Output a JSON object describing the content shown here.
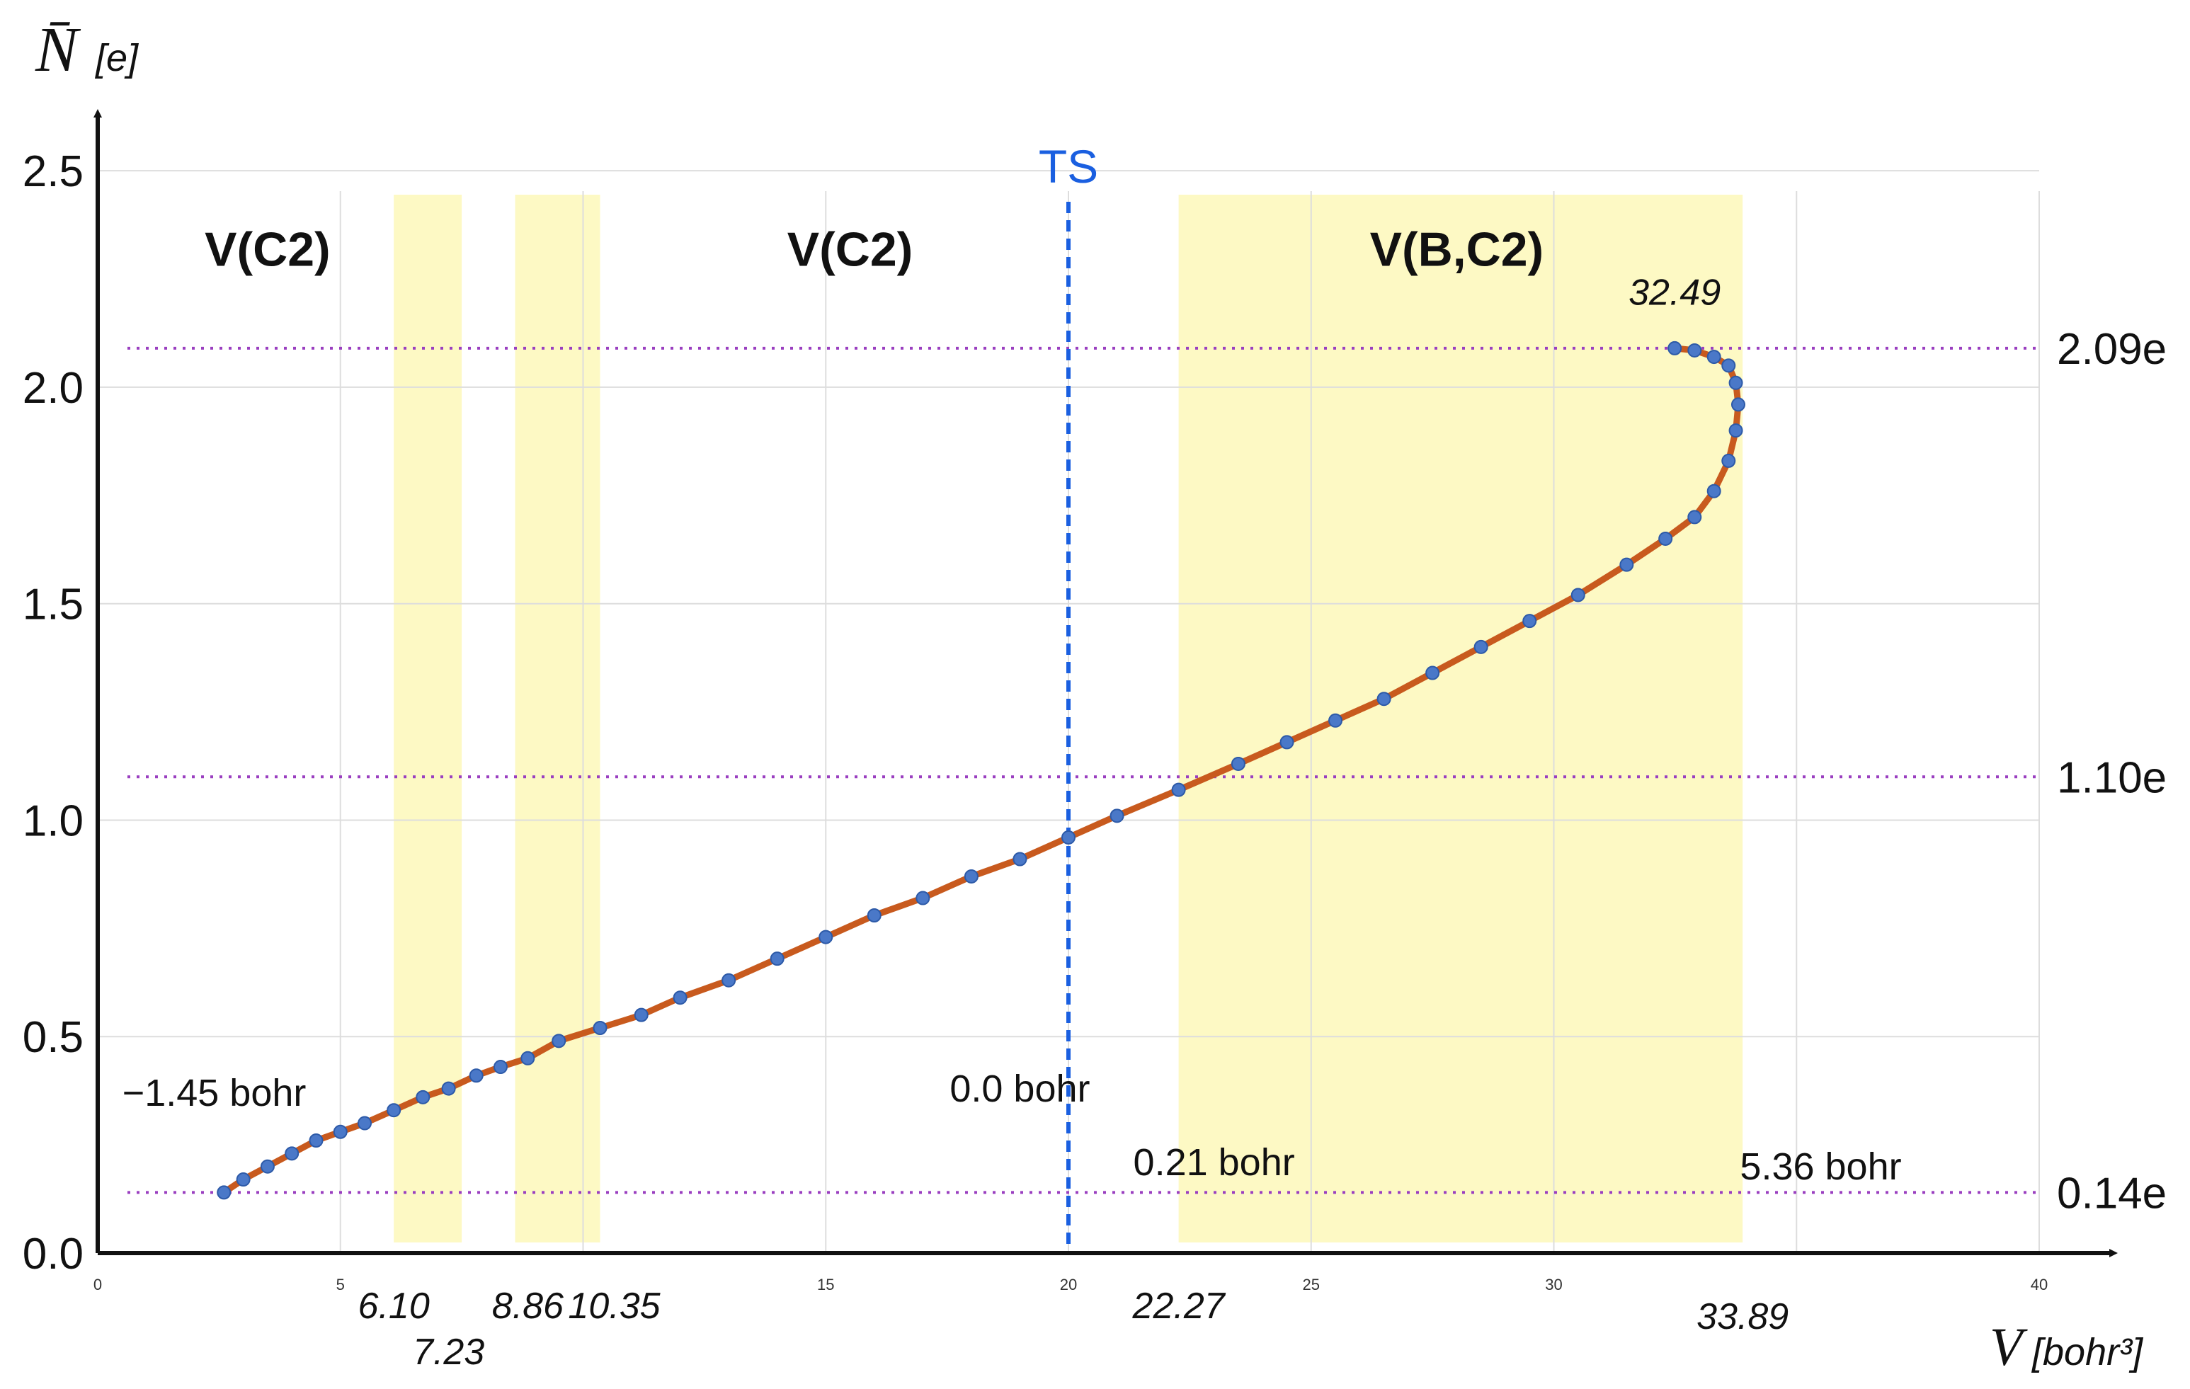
{
  "chart_data": {
    "type": "line",
    "xlabel": "V",
    "xunit": "[bohr³]",
    "ylabel": "N̄",
    "yunit": "[e]",
    "xlim": [
      0,
      40
    ],
    "ylim": [
      0,
      2.6
    ],
    "grid": true,
    "x_ticks": [
      0,
      5,
      15,
      20,
      25,
      30,
      40
    ],
    "x_tick_labels": [
      "0",
      "5",
      "15",
      "20",
      "25",
      "30",
      "40"
    ],
    "y_ticks": [
      0.0,
      0.5,
      1.0,
      1.5,
      2.0,
      2.5
    ],
    "y_tick_labels": [
      "0.0",
      "0.5",
      "1.0",
      "1.5",
      "2.0",
      "2.5"
    ],
    "x_annotations": [
      {
        "x": 6.1,
        "label": "6.10"
      },
      {
        "x": 7.23,
        "label": "7.23"
      },
      {
        "x": 8.86,
        "label": "8.86"
      },
      {
        "x": 10.35,
        "label": "10.35"
      },
      {
        "x": 22.27,
        "label": "22.27"
      },
      {
        "x": 33.89,
        "label": "33.89"
      }
    ],
    "shaded_bands": [
      {
        "x0": 6.1,
        "x1": 7.5
      },
      {
        "x0": 8.6,
        "x1": 10.35
      },
      {
        "x0": 22.27,
        "x1": 33.89
      }
    ],
    "region_labels": [
      {
        "x": 3.5,
        "y": 2.28,
        "label": "V(C2)"
      },
      {
        "x": 15.5,
        "y": 2.28,
        "label": "V(C2)"
      },
      {
        "x": 28.0,
        "y": 2.28,
        "label": "V(B,C2)"
      }
    ],
    "ts_line": {
      "x": 20,
      "label": "TS"
    },
    "levels": [
      {
        "y": 2.09,
        "label": "2.09e"
      },
      {
        "y": 1.1,
        "label": "1.10e"
      },
      {
        "y": 0.14,
        "label": "0.14e"
      }
    ],
    "point_labels": [
      {
        "x": 32.49,
        "y": 2.19,
        "label": "32.49"
      },
      {
        "x": 2.4,
        "y": 0.34,
        "label": "−1.45 bohr"
      },
      {
        "x": 19.0,
        "y": 0.35,
        "label": "0.0 bohr"
      },
      {
        "x": 23.0,
        "y": 0.18,
        "label": "0.21 bohr"
      },
      {
        "x": 35.5,
        "y": 0.17,
        "label": "5.36 bohr"
      }
    ],
    "series": [
      {
        "color": "#c85a1e",
        "marker_color": "#4a78c8",
        "x": [
          2.6,
          3.0,
          3.5,
          4.0,
          4.5,
          5.0,
          5.5,
          6.1,
          6.7,
          7.23,
          7.8,
          8.3,
          8.86,
          9.5,
          10.35,
          11.2,
          12.0,
          13.0,
          14.0,
          15.0,
          16.0,
          17.0,
          18.0,
          19.0,
          20.0,
          21.0,
          22.27,
          23.5,
          24.5,
          25.5,
          26.5,
          27.5,
          28.5,
          29.5,
          30.5,
          31.5,
          32.3,
          32.9,
          33.3,
          33.6,
          33.75,
          33.8,
          33.75,
          33.6,
          33.3,
          32.9,
          32.49
        ],
        "y": [
          0.14,
          0.17,
          0.2,
          0.23,
          0.26,
          0.28,
          0.3,
          0.33,
          0.36,
          0.38,
          0.41,
          0.43,
          0.45,
          0.49,
          0.52,
          0.55,
          0.59,
          0.63,
          0.68,
          0.73,
          0.78,
          0.82,
          0.87,
          0.91,
          0.96,
          1.01,
          1.07,
          1.13,
          1.18,
          1.23,
          1.28,
          1.34,
          1.4,
          1.46,
          1.52,
          1.59,
          1.65,
          1.7,
          1.76,
          1.83,
          1.9,
          1.96,
          2.01,
          2.05,
          2.07,
          2.085,
          2.09
        ]
      }
    ]
  }
}
